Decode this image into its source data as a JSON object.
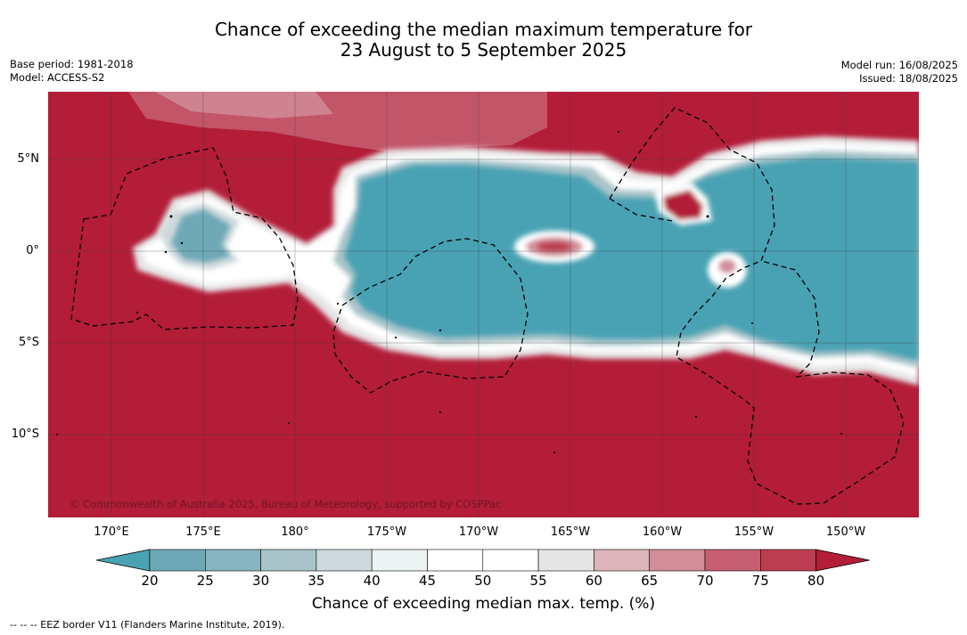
{
  "title": {
    "line1": "Chance of exceeding the median maximum temperature for",
    "line2": "23 August to 5 September 2025"
  },
  "meta_left": {
    "base_period": "Base period: 1981-2018",
    "model": "Model: ACCESS-S2"
  },
  "meta_right": {
    "model_run": "Model run: 16/08/2025",
    "issued": "Issued: 18/08/2025"
  },
  "map": {
    "copyright": "© Commonwealth of Australia 2025, Bureau of Meteorology, supported by COSPPac",
    "lat_labels": [
      "5°N",
      "0°",
      "5°S",
      "10°S"
    ],
    "lon_labels": [
      "170°E",
      "175°E",
      "180°",
      "175°W",
      "170°W",
      "165°W",
      "160°W",
      "155°W",
      "150°W"
    ],
    "colors": {
      "dominant_high": "#b31d38",
      "dominant_low": "#49a2b3",
      "neutral": "#ffffff"
    }
  },
  "colorbar": {
    "ticks": [
      "20",
      "25",
      "30",
      "35",
      "40",
      "45",
      "50",
      "55",
      "60",
      "65",
      "70",
      "75",
      "80"
    ],
    "colors": [
      "#49a2b3",
      "#6ea9b8",
      "#89b5c0",
      "#a9c4c9",
      "#cfd9dc",
      "#edf2f3",
      "#ffffff",
      "#ffffff",
      "#e6e6e6",
      "#dfb5bc",
      "#d28d98",
      "#c55f71",
      "#bd3d52",
      "#b31d38"
    ],
    "label": "Chance of exceeding median max. temp. (%)"
  },
  "footnote": "--  --  -- EEZ border V11 (Flanders Marine Institute, 2019)."
}
